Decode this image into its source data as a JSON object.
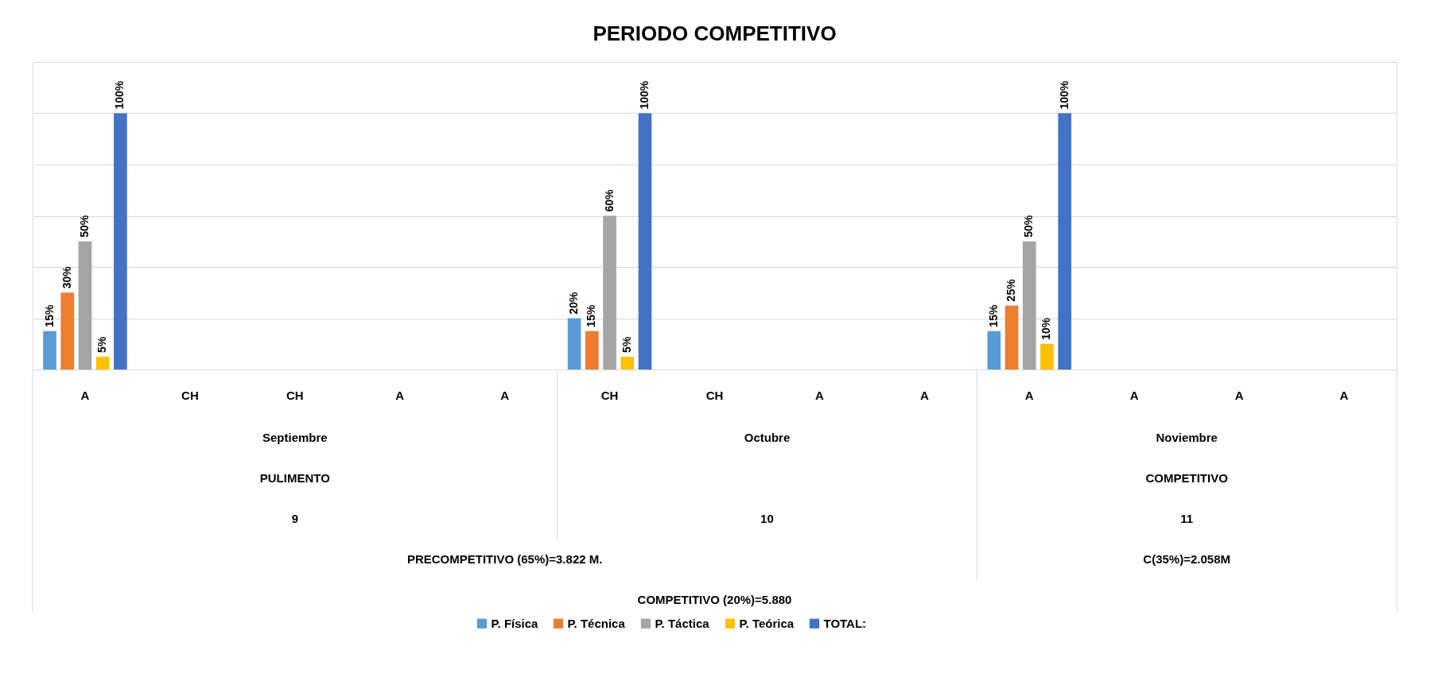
{
  "chart_data": {
    "type": "bar",
    "title": "PERIODO COMPETITIVO",
    "categories": [
      "A",
      "CH",
      "CH",
      "A",
      "A",
      "CH",
      "CH",
      "A",
      "A",
      "A",
      "A",
      "A",
      "A"
    ],
    "series": [
      {
        "name": "P. Física",
        "color": "#5b9bd5",
        "values": [
          15,
          null,
          null,
          null,
          null,
          20,
          null,
          null,
          null,
          15,
          null,
          null,
          null
        ],
        "value_labels": [
          "15%",
          null,
          null,
          null,
          null,
          "20%",
          null,
          null,
          null,
          "15%",
          null,
          null,
          null
        ]
      },
      {
        "name": "P. Técnica",
        "color": "#ed7d31",
        "values": [
          30,
          null,
          null,
          null,
          null,
          15,
          null,
          null,
          null,
          25,
          null,
          null,
          null
        ],
        "value_labels": [
          "30%",
          null,
          null,
          null,
          null,
          "15%",
          null,
          null,
          null,
          "25%",
          null,
          null,
          null
        ]
      },
      {
        "name": "P. Táctica",
        "color": "#a5a5a5",
        "values": [
          50,
          null,
          null,
          null,
          null,
          60,
          null,
          null,
          null,
          50,
          null,
          null,
          null
        ],
        "value_labels": [
          "50%",
          null,
          null,
          null,
          null,
          "60%",
          null,
          null,
          null,
          "50%",
          null,
          null,
          null
        ]
      },
      {
        "name": "P. Teórica",
        "color": "#ffc000",
        "values": [
          5,
          null,
          null,
          null,
          null,
          5,
          null,
          null,
          null,
          10,
          null,
          null,
          null
        ],
        "value_labels": [
          "5%",
          null,
          null,
          null,
          null,
          "5%",
          null,
          null,
          null,
          "10%",
          null,
          null,
          null
        ]
      },
      {
        "name": "TOTAL:",
        "color": "#4472c4",
        "values": [
          100,
          null,
          null,
          null,
          null,
          100,
          null,
          null,
          null,
          100,
          null,
          null,
          null
        ],
        "value_labels": [
          "100%",
          null,
          null,
          null,
          null,
          "100%",
          null,
          null,
          null,
          "100%",
          null,
          null,
          null
        ]
      }
    ],
    "ylim": [
      0,
      120
    ],
    "yticks": [
      {
        "value": 0,
        "label": null
      },
      {
        "value": 20,
        "label": null
      },
      {
        "value": 40,
        "label": null
      },
      {
        "value": 60,
        "label": null
      },
      {
        "value": 80,
        "label": null
      },
      {
        "value": 100,
        "label": null
      },
      {
        "value": 120,
        "label": null
      }
    ],
    "tick_labels": "x",
    "grid": "y",
    "legend": "bottom",
    "annotations": [
      "Septiembre",
      "Octubre",
      "Noviembre",
      "PULIMENTO",
      "COMPETITIVO",
      "9",
      "10",
      "11",
      "PRECOMPETITIVO (65%)=3.822 M.",
      "C(35%)=2.058M",
      "COMPETITIVO (20%)=5.880"
    ]
  }
}
